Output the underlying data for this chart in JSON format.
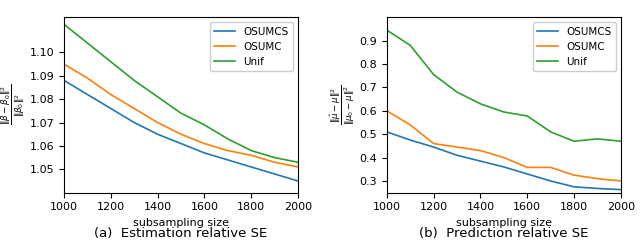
{
  "left_x": [
    1000,
    1100,
    1200,
    1300,
    1400,
    1500,
    1600,
    1700,
    1800,
    1900,
    2000
  ],
  "left_osumcs": [
    1.088,
    1.082,
    1.076,
    1.07,
    1.065,
    1.061,
    1.057,
    1.054,
    1.051,
    1.048,
    1.045
  ],
  "left_osumc": [
    1.095,
    1.089,
    1.082,
    1.076,
    1.07,
    1.065,
    1.061,
    1.058,
    1.056,
    1.053,
    1.051
  ],
  "left_unif": [
    1.112,
    1.104,
    1.096,
    1.088,
    1.081,
    1.074,
    1.069,
    1.063,
    1.058,
    1.055,
    1.053
  ],
  "right_x": [
    1000,
    1100,
    1200,
    1300,
    1400,
    1500,
    1600,
    1700,
    1800,
    1900,
    2000
  ],
  "right_osumcs": [
    0.51,
    0.475,
    0.445,
    0.41,
    0.385,
    0.36,
    0.33,
    0.3,
    0.275,
    0.268,
    0.263
  ],
  "right_osumc": [
    0.6,
    0.54,
    0.46,
    0.445,
    0.43,
    0.4,
    0.358,
    0.358,
    0.325,
    0.31,
    0.3
  ],
  "right_unif": [
    0.945,
    0.88,
    0.755,
    0.68,
    0.63,
    0.595,
    0.578,
    0.51,
    0.47,
    0.48,
    0.47
  ],
  "left_ylabel": "$\\frac{\\|\\hat{\\beta}-\\beta_0\\|^2}{\\|\\beta_0\\|^2}$",
  "right_ylabel": "$\\frac{\\|\\hat{\\mu}-\\mu\\|^2}{\\|\\mu_0-\\mu\\|^2}$",
  "xlabel": "subsampling size",
  "left_caption": "(a)  Estimation relative SE",
  "right_caption": "(b)  Prediction relative SE",
  "colors": {
    "osumcs": "#1f77b4",
    "osumc": "#ff7f0e",
    "unif": "#2ca02c"
  },
  "left_ylim": [
    1.04,
    1.115
  ],
  "right_ylim": [
    0.25,
    1.0
  ],
  "left_yticks": [
    1.05,
    1.06,
    1.07,
    1.08,
    1.09,
    1.1
  ],
  "right_yticks": [
    0.3,
    0.4,
    0.5,
    0.6,
    0.7,
    0.8,
    0.9
  ],
  "xticks": [
    1000,
    1200,
    1400,
    1600,
    1800,
    2000
  ],
  "legend_labels": [
    "OSUMCS",
    "OSUMC",
    "Unif"
  ]
}
